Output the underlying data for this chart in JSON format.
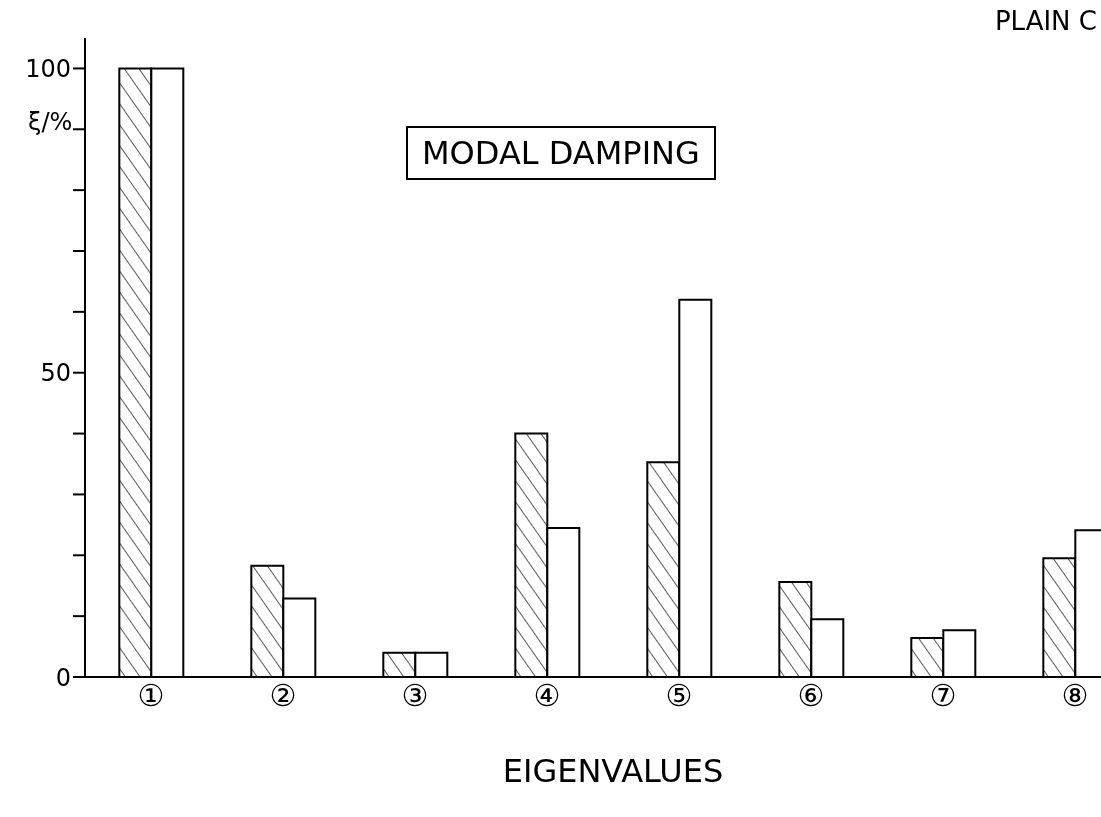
{
  "chart_data": {
    "type": "bar",
    "title": "MODAL DAMPING",
    "xlabel": "EIGENVALUES",
    "ylabel": "ξ/%",
    "annotations": [
      "PLAIN C"
    ],
    "categories": [
      "①",
      "②",
      "③",
      "④",
      "⑤",
      "⑥",
      "⑦",
      "⑧"
    ],
    "series": [
      {
        "color": "#000000",
        "values": [
          100,
          18.3,
          4,
          40,
          35.3,
          15.6,
          6.4,
          19.5
        ]
      },
      {
        "color": "#ffffff",
        "values": [
          100,
          12.9,
          4,
          24.5,
          62,
          9.5,
          7.7,
          24.1
        ]
      }
    ],
    "ylim": [
      0,
      105
    ],
    "yticks": [
      0,
      {
        "value": 10,
        "label": null
      },
      {
        "value": 20,
        "label": null
      },
      {
        "value": 30,
        "label": null
      },
      {
        "value": 40,
        "label": null
      },
      50,
      {
        "value": 60,
        "label": null
      },
      {
        "value": 70,
        "label": null
      },
      {
        "value": 80,
        "label": null
      },
      {
        "value": 90,
        "label": null
      },
      100
    ],
    "grid": false,
    "legend": false
  }
}
